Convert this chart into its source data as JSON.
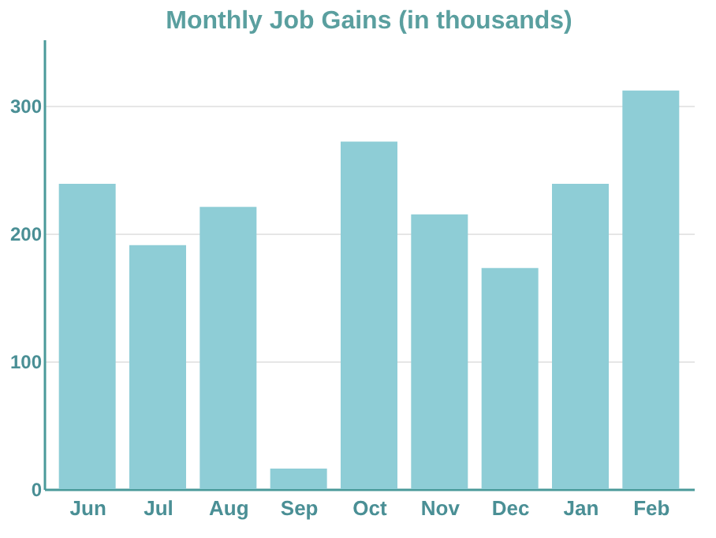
{
  "chart_data": {
    "type": "bar",
    "title": "Monthly Job Gains (in thousands)",
    "categories": [
      "Jun",
      "Jul",
      "Aug",
      "Sep",
      "Oct",
      "Nov",
      "Dec",
      "Jan",
      "Feb"
    ],
    "values": [
      239,
      191,
      221,
      16,
      272,
      215,
      173,
      239,
      312
    ],
    "color": "#8ecdd6",
    "ylim": [
      0,
      352
    ],
    "yticks": [
      0,
      100,
      200,
      300
    ],
    "grid": "y"
  }
}
